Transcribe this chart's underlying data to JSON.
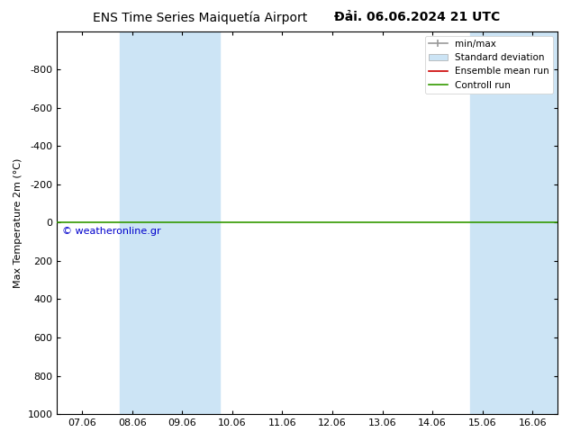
{
  "title_left": "ENS Time Series Maiquetía Airport",
  "title_right": "Đải. 06.06.2024 21 UTC",
  "ylabel": "Max Temperature 2m (°C)",
  "ylim_bottom": 1000,
  "ylim_top": -1000,
  "yticks": [
    -800,
    -600,
    -400,
    -200,
    0,
    200,
    400,
    600,
    800,
    1000
  ],
  "xtick_labels": [
    "07.06",
    "08.06",
    "09.06",
    "10.06",
    "11.06",
    "12.06",
    "13.06",
    "14.06",
    "15.06",
    "16.06"
  ],
  "xtick_positions": [
    0,
    1,
    2,
    3,
    4,
    5,
    6,
    7,
    8,
    9
  ],
  "blue_bands": [
    [
      0.75,
      1.75
    ],
    [
      1.75,
      2.75
    ],
    [
      7.75,
      8.75
    ],
    [
      8.75,
      9.75
    ]
  ],
  "green_line_y": 0,
  "watermark": "© weatheronline.gr",
  "watermark_color": "#0000cc",
  "background_color": "#ffffff",
  "plot_bg_color": "#ffffff",
  "band_color": "#cce4f5",
  "green_line_color": "#339900",
  "red_line_color": "#cc0000",
  "gray_color": "#999999",
  "legend_entries": [
    "min/max",
    "Standard deviation",
    "Ensemble mean run",
    "Controll run"
  ],
  "title_fontsize": 10,
  "axis_fontsize": 8,
  "tick_fontsize": 8,
  "legend_fontsize": 7.5
}
